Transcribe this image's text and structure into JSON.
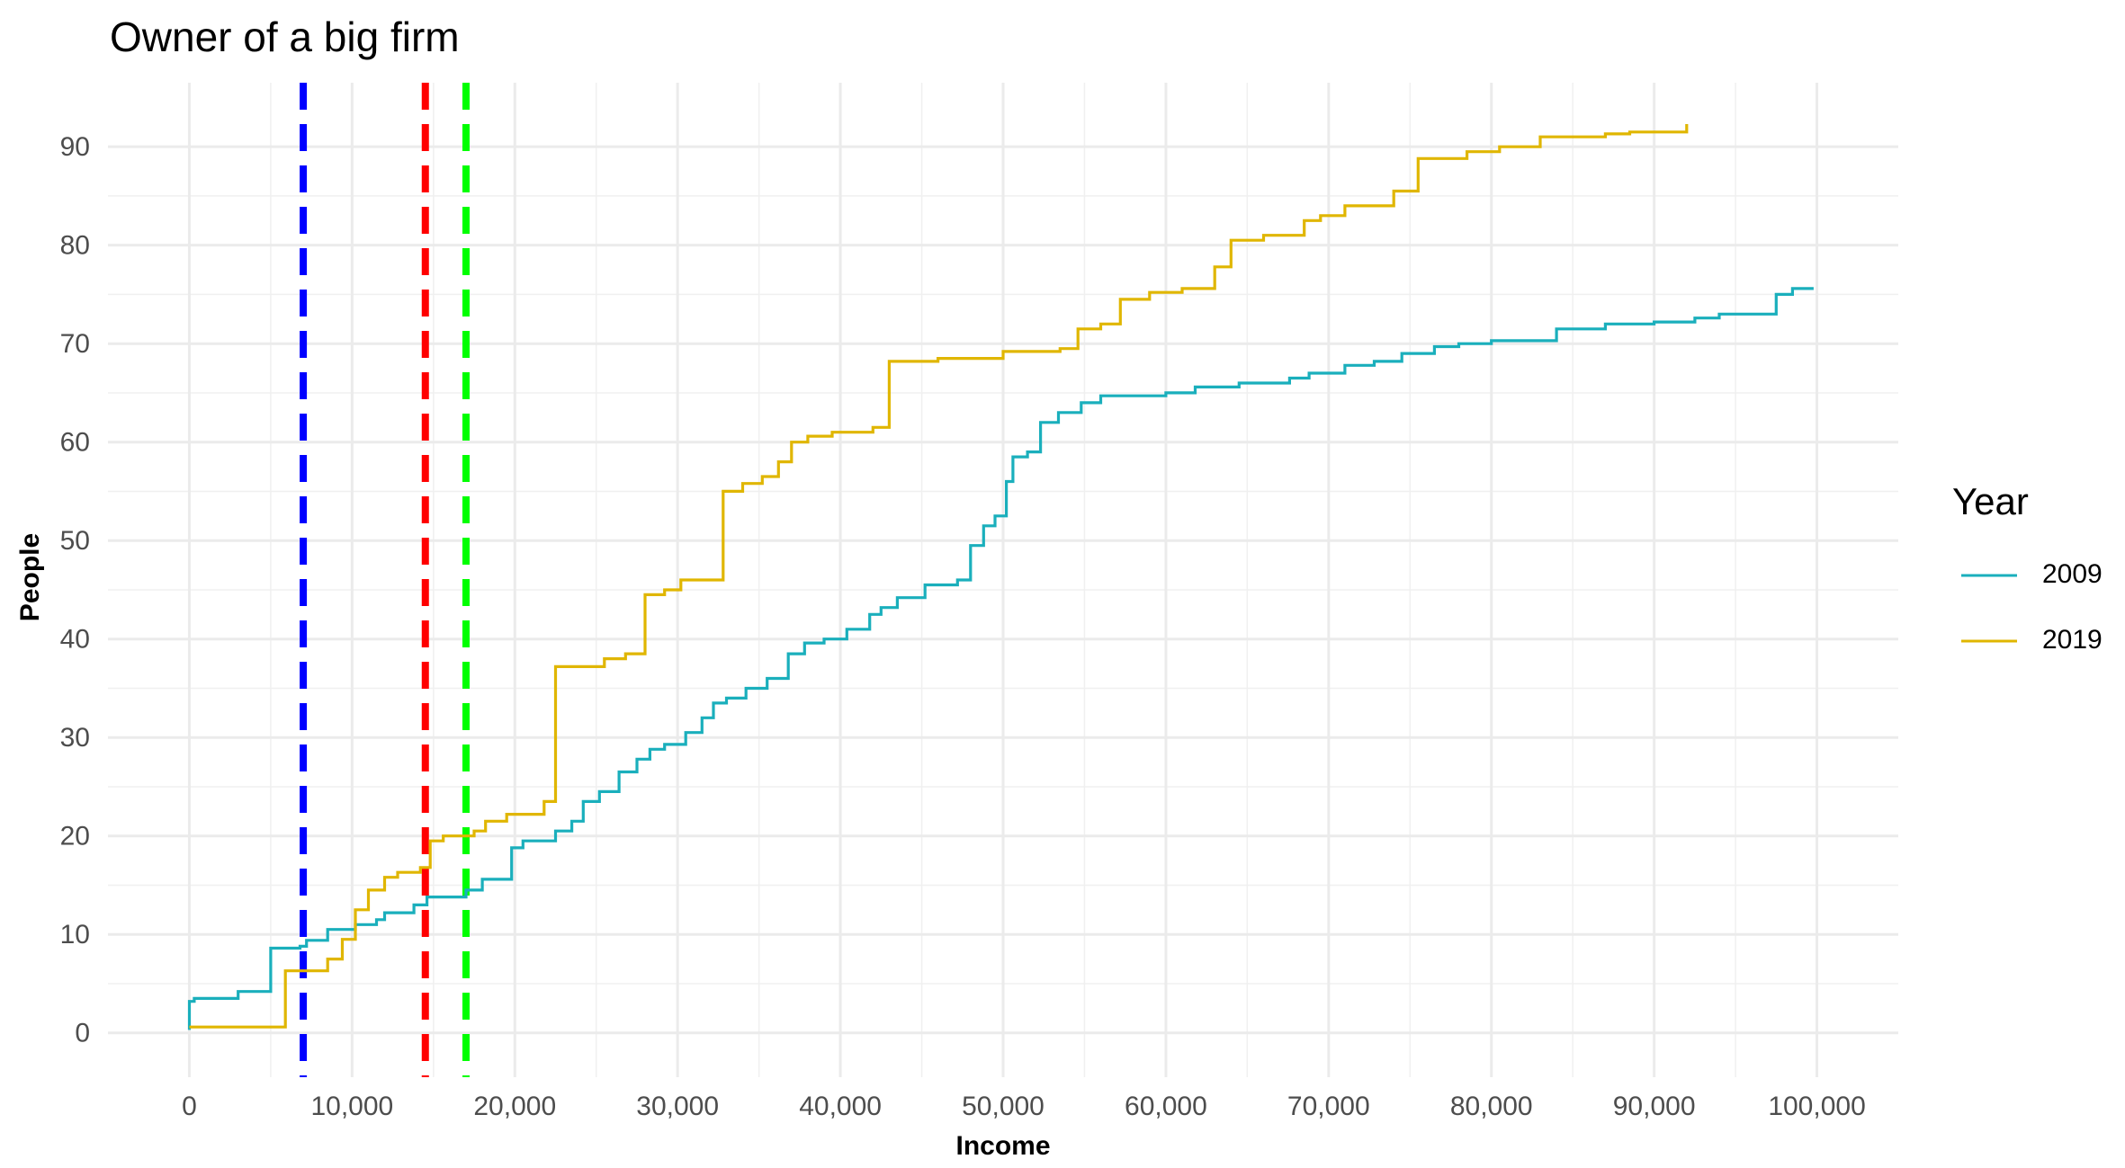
{
  "chart_data": {
    "type": "line",
    "title": "Owner of a big firm",
    "xlabel": "Income",
    "ylabel": "People",
    "xlim": [
      -5000,
      105000
    ],
    "ylim": [
      -4.5,
      96.5
    ],
    "xticks": [
      0,
      10000,
      20000,
      30000,
      40000,
      50000,
      60000,
      70000,
      80000,
      90000,
      100000
    ],
    "xtick_labels": [
      "0",
      "10,000",
      "20,000",
      "30,000",
      "40,000",
      "50,000",
      "60,000",
      "70,000",
      "80,000",
      "90,000",
      "100,000"
    ],
    "yticks": [
      0,
      10,
      20,
      30,
      40,
      50,
      60,
      70,
      80,
      90
    ],
    "ytick_labels": [
      "0",
      "10",
      "20",
      "30",
      "40",
      "50",
      "60",
      "70",
      "80",
      "90"
    ],
    "grid": true,
    "legend": {
      "title": "Year",
      "position": "right"
    },
    "series": [
      {
        "name": "2009",
        "color": "#1AAFBC",
        "step": true,
        "points": [
          [
            0,
            0.3
          ],
          [
            0,
            3.2
          ],
          [
            300,
            3.5
          ],
          [
            3000,
            4.2
          ],
          [
            5000,
            8.6
          ],
          [
            6800,
            8.8
          ],
          [
            7200,
            9.4
          ],
          [
            8500,
            10.5
          ],
          [
            10200,
            11
          ],
          [
            11500,
            11.5
          ],
          [
            12000,
            12.2
          ],
          [
            13800,
            13
          ],
          [
            14600,
            13.8
          ],
          [
            17000,
            14.5
          ],
          [
            18000,
            15.6
          ],
          [
            19800,
            18.8
          ],
          [
            20500,
            19.5
          ],
          [
            22500,
            20.5
          ],
          [
            23500,
            21.5
          ],
          [
            24200,
            23.5
          ],
          [
            25200,
            24.5
          ],
          [
            26400,
            26.5
          ],
          [
            27500,
            27.8
          ],
          [
            28300,
            28.8
          ],
          [
            29200,
            29.3
          ],
          [
            30500,
            30.5
          ],
          [
            31500,
            32
          ],
          [
            32200,
            33.5
          ],
          [
            33000,
            34
          ],
          [
            34200,
            35
          ],
          [
            35500,
            36
          ],
          [
            36800,
            38.5
          ],
          [
            37800,
            39.6
          ],
          [
            39000,
            40
          ],
          [
            40400,
            41
          ],
          [
            41800,
            42.5
          ],
          [
            42500,
            43.2
          ],
          [
            43500,
            44.2
          ],
          [
            45200,
            45.5
          ],
          [
            47200,
            46
          ],
          [
            48000,
            49.5
          ],
          [
            48800,
            51.5
          ],
          [
            49500,
            52.5
          ],
          [
            50200,
            56
          ],
          [
            50600,
            58.5
          ],
          [
            51500,
            59
          ],
          [
            52300,
            62
          ],
          [
            53400,
            63
          ],
          [
            54800,
            64
          ],
          [
            56000,
            64.7
          ],
          [
            60000,
            65
          ],
          [
            61800,
            65.6
          ],
          [
            64500,
            66
          ],
          [
            67600,
            66.5
          ],
          [
            68800,
            67
          ],
          [
            71000,
            67.8
          ],
          [
            72800,
            68.2
          ],
          [
            74500,
            69
          ],
          [
            76500,
            69.7
          ],
          [
            78000,
            70
          ],
          [
            80000,
            70.3
          ],
          [
            84000,
            71.5
          ],
          [
            87000,
            72
          ],
          [
            90000,
            72.2
          ],
          [
            92500,
            72.6
          ],
          [
            94000,
            73
          ],
          [
            97500,
            75
          ],
          [
            98500,
            75.6
          ],
          [
            99800,
            75.6
          ]
        ]
      },
      {
        "name": "2019",
        "color": "#E0B600",
        "step": true,
        "points": [
          [
            0,
            0.6
          ],
          [
            5900,
            6.3
          ],
          [
            8500,
            7.5
          ],
          [
            9400,
            9.5
          ],
          [
            10200,
            12.5
          ],
          [
            11000,
            14.5
          ],
          [
            12000,
            15.8
          ],
          [
            12800,
            16.3
          ],
          [
            14200,
            16.8
          ],
          [
            14800,
            19.5
          ],
          [
            15600,
            20
          ],
          [
            17500,
            20.5
          ],
          [
            18200,
            21.5
          ],
          [
            19500,
            22.2
          ],
          [
            21800,
            23.5
          ],
          [
            22500,
            37.2
          ],
          [
            25500,
            38
          ],
          [
            26800,
            38.5
          ],
          [
            28000,
            44.5
          ],
          [
            29200,
            45
          ],
          [
            30200,
            46
          ],
          [
            32800,
            55
          ],
          [
            34000,
            55.8
          ],
          [
            35200,
            56.5
          ],
          [
            36200,
            58
          ],
          [
            37000,
            60
          ],
          [
            38000,
            60.6
          ],
          [
            39500,
            61
          ],
          [
            42000,
            61.5
          ],
          [
            43000,
            68.2
          ],
          [
            46000,
            68.5
          ],
          [
            50000,
            69.2
          ],
          [
            53500,
            69.5
          ],
          [
            54600,
            71.5
          ],
          [
            56000,
            72
          ],
          [
            57200,
            74.5
          ],
          [
            59000,
            75.2
          ],
          [
            61000,
            75.6
          ],
          [
            63000,
            77.8
          ],
          [
            64000,
            80.5
          ],
          [
            66000,
            81
          ],
          [
            68500,
            82.5
          ],
          [
            69500,
            83
          ],
          [
            71000,
            84
          ],
          [
            74000,
            85.5
          ],
          [
            75500,
            88.8
          ],
          [
            78500,
            89.5
          ],
          [
            80500,
            90
          ],
          [
            83000,
            91
          ],
          [
            87000,
            91.3
          ],
          [
            88500,
            91.5
          ],
          [
            92000,
            92.3
          ]
        ]
      }
    ],
    "reference_lines": [
      {
        "x": 7000,
        "color": "#0000FF",
        "style": "dashed"
      },
      {
        "x": 14500,
        "color": "#FF0000",
        "style": "dashed"
      },
      {
        "x": 17000,
        "color": "#00FF00",
        "style": "dashed"
      }
    ]
  }
}
